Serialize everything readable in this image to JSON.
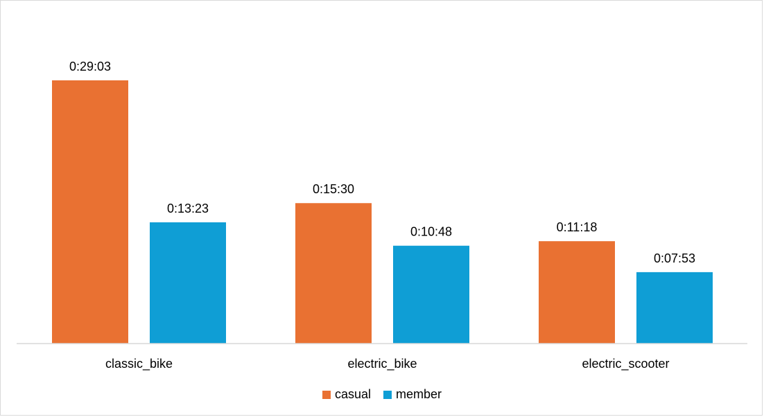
{
  "chart_data": {
    "type": "bar",
    "title": "",
    "xlabel": "",
    "ylabel": "",
    "categories": [
      "classic_bike",
      "electric_bike",
      "electric_scooter"
    ],
    "series": [
      {
        "name": "casual",
        "color": "#E97132",
        "values_seconds": [
          1743,
          930,
          678
        ],
        "labels": [
          "0:29:03",
          "0:15:30",
          "0:11:18"
        ]
      },
      {
        "name": "member",
        "color": "#0F9ED5",
        "values_seconds": [
          803,
          648,
          473
        ],
        "labels": [
          "0:13:23",
          "0:10:48",
          "0:07:53"
        ]
      }
    ],
    "ylim_seconds": [
      0,
      1988
    ],
    "grid": false,
    "y_axis_visible": false,
    "legend_position": "bottom",
    "data_labels": true
  }
}
